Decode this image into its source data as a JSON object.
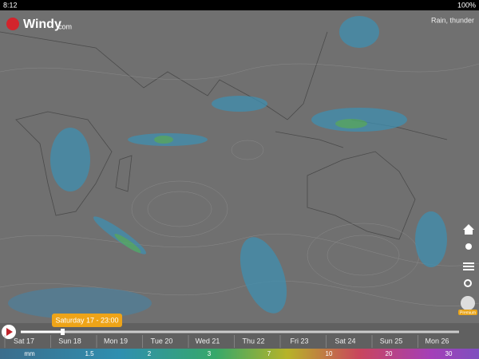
{
  "status_bar": {
    "time": "8:12",
    "battery": "100%"
  },
  "header": {
    "logo": "Windy",
    "logo_suffix": "com",
    "layer": "Rain, thunder"
  },
  "side_menu": {
    "account": "Premium"
  },
  "timeline": {
    "tooltip": "Saturday 17 - 23:00",
    "days": [
      "Sat 17",
      "Sun 18",
      "Mon 19",
      "Tue 20",
      "Wed 21",
      "Thu 22",
      "Fri 23",
      "Sat 24",
      "Sun 25",
      "Mon 26"
    ]
  },
  "legend": {
    "unit": "mm",
    "values": [
      1.5,
      2,
      3,
      7,
      10,
      20,
      30
    ]
  }
}
